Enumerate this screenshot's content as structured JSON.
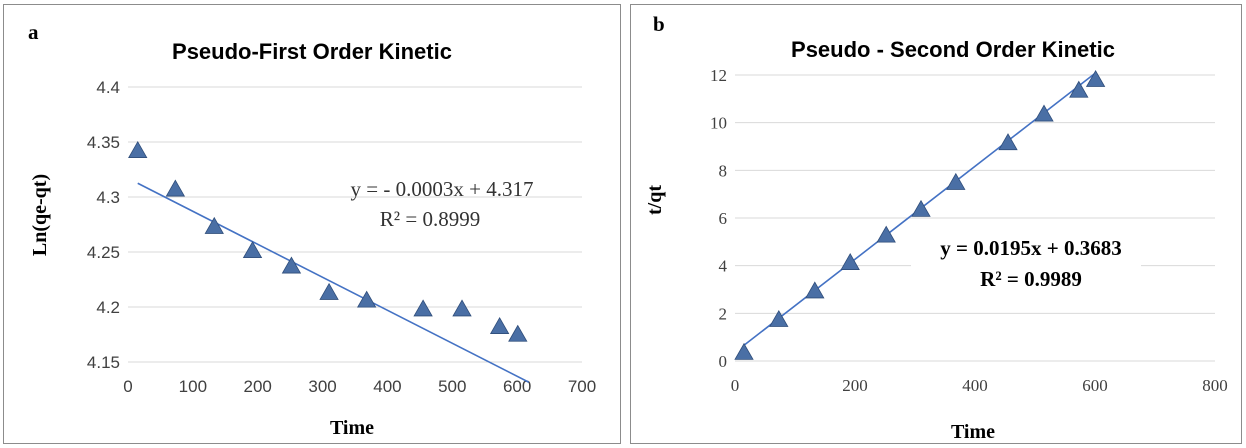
{
  "chart_data": [
    {
      "type": "scatter",
      "panel_label": "a",
      "title": "Pseudo-First Order Kinetic",
      "xlabel": "Time",
      "ylabel": "Ln(qe-qt)",
      "xlim": [
        0,
        700
      ],
      "ylim": [
        4.15,
        4.4
      ],
      "xticks": [
        "0",
        "100",
        "200",
        "300",
        "400",
        "500",
        "600",
        "700"
      ],
      "yticks": [
        "4.15",
        "4.2",
        "4.25",
        "4.3",
        "4.35",
        "4.4"
      ],
      "grid": "horizontal",
      "marker": "triangle",
      "color": "#4a6fa5",
      "x": [
        15,
        73,
        133,
        192,
        252,
        310,
        368,
        455,
        515,
        573,
        601
      ],
      "y": [
        4.342,
        4.307,
        4.273,
        4.251,
        4.237,
        4.213,
        4.206,
        4.198,
        4.198,
        4.182,
        4.175
      ],
      "trendline": {
        "slope": -0.0003,
        "intercept": 4.317,
        "x_range": [
          15,
          618
        ]
      },
      "equation": "y = - 0.0003x + 4.317",
      "r2": "R² = 0.8999"
    },
    {
      "type": "scatter",
      "panel_label": "b",
      "title": "Pseudo - Second Order Kinetic",
      "xlabel": "Time",
      "ylabel": "t/qt",
      "xlim": [
        0,
        800
      ],
      "ylim": [
        0,
        12
      ],
      "xticks": [
        "0",
        "200",
        "400",
        "600",
        "800"
      ],
      "yticks": [
        "0",
        "2",
        "4",
        "6",
        "8",
        "10",
        "12"
      ],
      "grid": "horizontal",
      "marker": "triangle",
      "color": "#4a6fa5",
      "x": [
        15,
        73,
        133,
        192,
        252,
        310,
        368,
        455,
        515,
        573,
        601
      ],
      "y": [
        0.35,
        1.73,
        2.93,
        4.12,
        5.27,
        6.35,
        7.48,
        9.15,
        10.35,
        11.35,
        11.8
      ],
      "trendline": {
        "slope": 0.0195,
        "intercept": 0.3683,
        "x_range": [
          15,
          601
        ]
      },
      "equation": "y = 0.0195x + 0.3683",
      "r2": "R² = 0.9989"
    }
  ]
}
